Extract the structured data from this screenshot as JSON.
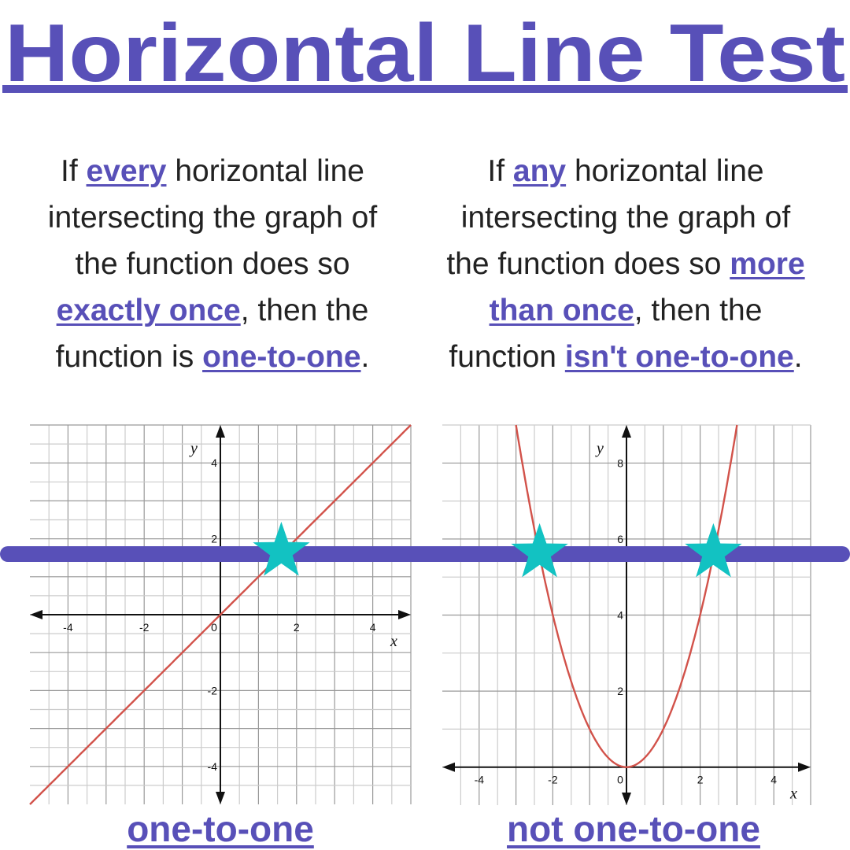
{
  "title": "Horizontal Line Test",
  "colors": {
    "accent": "#5850b8",
    "curve": "#d2524a",
    "star": "#12c2c2",
    "grid": "#bdbdbd",
    "axis": "#111111"
  },
  "left_text": {
    "lines": [
      [
        {
          "t": "If "
        },
        {
          "t": "every",
          "em": true
        },
        {
          "t": " horizontal line"
        }
      ],
      [
        {
          "t": "intersecting the graph of"
        }
      ],
      [
        {
          "t": "the function does so"
        }
      ],
      [
        {
          "t": "exactly once",
          "em": true
        },
        {
          "t": ", then the"
        }
      ],
      [
        {
          "t": "function is "
        },
        {
          "t": "one-to-one",
          "em": true
        },
        {
          "t": "."
        }
      ]
    ]
  },
  "right_text": {
    "lines": [
      [
        {
          "t": "If "
        },
        {
          "t": "any",
          "em": true
        },
        {
          "t": " horizontal line"
        }
      ],
      [
        {
          "t": "intersecting the graph of"
        }
      ],
      [
        {
          "t": "the function does so "
        },
        {
          "t": "more",
          "em": true
        }
      ],
      [
        {
          "t": "than once",
          "em": true
        },
        {
          "t": ", then the"
        }
      ],
      [
        {
          "t": "function "
        },
        {
          "t": "isn't one-to-one",
          "em": true
        },
        {
          "t": "."
        }
      ]
    ]
  },
  "graphs": [
    {
      "id": "linear",
      "function": "y = x",
      "x_label": "x",
      "y_label": "y",
      "xlim": [
        -5,
        5
      ],
      "ylim": [
        -5,
        5
      ],
      "x_ticks": [
        "-4",
        "-2",
        "0",
        "2",
        "4"
      ],
      "y_ticks": [
        "-4",
        "-2",
        "2",
        "4"
      ],
      "intersections_x": [
        1.6
      ],
      "caption": "one-to-one"
    },
    {
      "id": "parabola",
      "function": "y = x^2",
      "x_label": "x",
      "y_label": "y",
      "xlim": [
        -5,
        5
      ],
      "ylim": [
        -1,
        9
      ],
      "x_ticks": [
        "-4",
        "-2",
        "0",
        "2",
        "4"
      ],
      "y_ticks": [
        "2",
        "4",
        "6",
        "8"
      ],
      "intersections_x": [
        -2.36,
        2.36
      ],
      "caption": "not one-to-one"
    }
  ],
  "horizontal_test_line": {
    "left_graph_y": 1.6,
    "right_graph_y": 5.57
  }
}
